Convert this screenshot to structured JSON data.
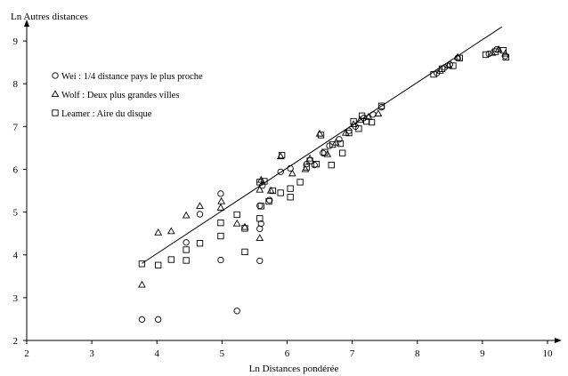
{
  "chart_data": {
    "type": "scatter",
    "xlabel": "Ln Distances pondérée",
    "ylabel": "Ln Autres distances",
    "xlim": [
      2,
      10
    ],
    "ylim": [
      2,
      9.5
    ],
    "xticks": [
      2,
      3,
      4,
      5,
      6,
      7,
      8,
      9,
      10
    ],
    "yticks": [
      2,
      3,
      4,
      5,
      6,
      7,
      8,
      9
    ],
    "grid": false,
    "legend_position": "top-left",
    "series": [
      {
        "name": "Wei : 1/4 distance pays le plus proche",
        "marker": "circle",
        "points": [
          [
            3.77,
            2.49
          ],
          [
            4.02,
            2.49
          ],
          [
            5.23,
            2.69
          ],
          [
            4.98,
            3.88
          ],
          [
            5.58,
            3.86
          ],
          [
            4.45,
            4.29
          ],
          [
            4.66,
            4.95
          ],
          [
            4.98,
            5.43
          ],
          [
            5.58,
            4.61
          ],
          [
            5.6,
            4.73
          ],
          [
            5.58,
            5.15
          ],
          [
            5.62,
            5.62
          ],
          [
            5.73,
            5.28
          ],
          [
            5.9,
            5.94
          ],
          [
            6.05,
            6.02
          ],
          [
            6.3,
            6.12
          ],
          [
            6.42,
            6.1
          ],
          [
            6.55,
            6.38
          ],
          [
            6.65,
            6.55
          ],
          [
            6.8,
            6.7
          ],
          [
            6.95,
            6.9
          ],
          [
            7.05,
            7.0
          ],
          [
            7.18,
            7.2
          ],
          [
            7.32,
            7.28
          ],
          [
            7.45,
            7.45
          ],
          [
            8.3,
            8.25
          ],
          [
            8.42,
            8.38
          ],
          [
            8.5,
            8.45
          ],
          [
            8.62,
            8.6
          ],
          [
            9.1,
            8.7
          ],
          [
            9.22,
            8.8
          ],
          [
            9.35,
            8.65
          ]
        ]
      },
      {
        "name": "Wolf : Deux plus grandes villes",
        "marker": "triangle",
        "points": [
          [
            3.77,
            3.3
          ],
          [
            4.02,
            4.52
          ],
          [
            4.22,
            4.55
          ],
          [
            4.45,
            4.92
          ],
          [
            4.66,
            5.14
          ],
          [
            4.98,
            5.1
          ],
          [
            4.99,
            5.25
          ],
          [
            5.23,
            4.73
          ],
          [
            5.35,
            4.65
          ],
          [
            5.58,
            4.39
          ],
          [
            5.58,
            5.52
          ],
          [
            5.6,
            5.75
          ],
          [
            5.75,
            5.5
          ],
          [
            5.9,
            6.3
          ],
          [
            6.08,
            5.9
          ],
          [
            6.28,
            6.0
          ],
          [
            6.35,
            6.25
          ],
          [
            6.5,
            6.83
          ],
          [
            6.62,
            6.35
          ],
          [
            6.75,
            6.62
          ],
          [
            6.9,
            6.85
          ],
          [
            7.02,
            7.05
          ],
          [
            7.12,
            7.15
          ],
          [
            7.25,
            7.22
          ],
          [
            7.4,
            7.3
          ],
          [
            8.35,
            8.3
          ],
          [
            8.48,
            8.42
          ],
          [
            8.62,
            8.62
          ],
          [
            9.15,
            8.72
          ],
          [
            9.25,
            8.8
          ],
          [
            9.35,
            8.7
          ]
        ]
      },
      {
        "name": "Leamer : Aire du disque",
        "marker": "square",
        "points": [
          [
            3.77,
            3.79
          ],
          [
            4.02,
            3.76
          ],
          [
            4.22,
            3.89
          ],
          [
            4.45,
            3.87
          ],
          [
            4.45,
            4.12
          ],
          [
            4.66,
            4.27
          ],
          [
            4.98,
            4.44
          ],
          [
            4.98,
            4.75
          ],
          [
            5.23,
            4.94
          ],
          [
            5.35,
            4.62
          ],
          [
            5.35,
            4.07
          ],
          [
            5.58,
            4.85
          ],
          [
            5.6,
            5.14
          ],
          [
            5.58,
            5.7
          ],
          [
            5.65,
            5.72
          ],
          [
            5.72,
            5.25
          ],
          [
            5.78,
            5.5
          ],
          [
            5.9,
            5.45
          ],
          [
            5.92,
            6.33
          ],
          [
            6.05,
            5.55
          ],
          [
            6.05,
            5.35
          ],
          [
            6.2,
            5.7
          ],
          [
            6.3,
            6.05
          ],
          [
            6.35,
            6.2
          ],
          [
            6.45,
            6.12
          ],
          [
            6.52,
            6.8
          ],
          [
            6.58,
            6.4
          ],
          [
            6.68,
            6.1
          ],
          [
            6.7,
            6.58
          ],
          [
            6.82,
            6.6
          ],
          [
            6.85,
            6.38
          ],
          [
            6.95,
            6.85
          ],
          [
            7.02,
            7.12
          ],
          [
            7.1,
            6.95
          ],
          [
            7.15,
            7.25
          ],
          [
            7.22,
            7.12
          ],
          [
            7.3,
            7.1
          ],
          [
            7.45,
            7.48
          ],
          [
            8.25,
            8.22
          ],
          [
            8.38,
            8.35
          ],
          [
            8.55,
            8.42
          ],
          [
            8.65,
            8.6
          ],
          [
            9.05,
            8.68
          ],
          [
            9.2,
            8.75
          ],
          [
            9.32,
            8.78
          ],
          [
            9.36,
            8.62
          ]
        ]
      }
    ],
    "fit_line": {
      "from": [
        3.77,
        3.8
      ],
      "to": [
        9.3,
        9.33
      ]
    }
  }
}
